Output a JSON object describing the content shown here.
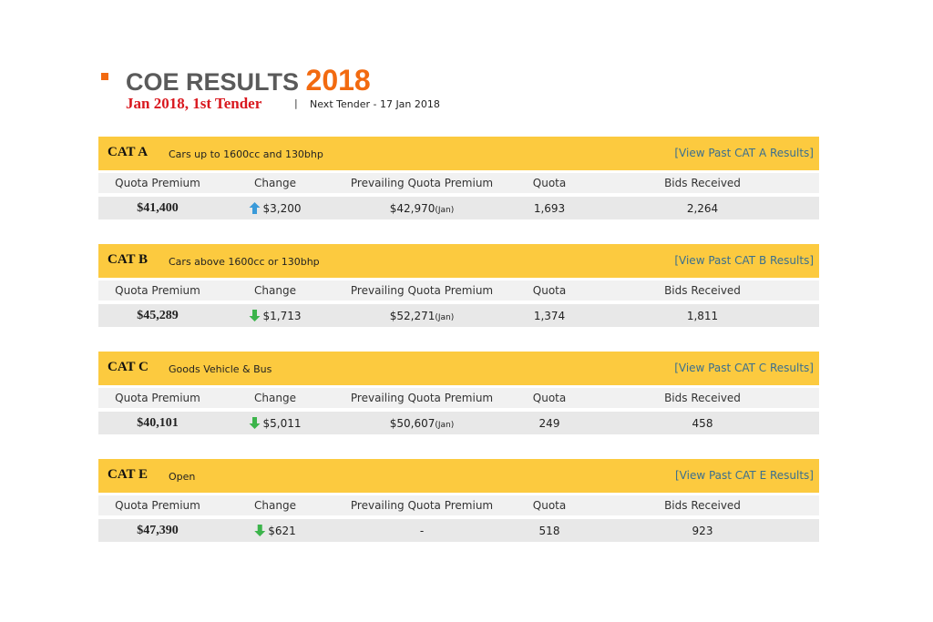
{
  "header": {
    "title": "COE RESULTS",
    "year": "2018",
    "subtitle": "Jan 2018, 1st Tender",
    "separator": "|",
    "next_tender": "Next Tender - 17 Jan 2018"
  },
  "columns": [
    "Quota Premium",
    "Change",
    "Prevailing Quota Premium",
    "Quota",
    "Bids Received"
  ],
  "categories": [
    {
      "code": "CAT A",
      "description": "Cars up to 1600cc and 130bhp",
      "link": "[View Past CAT A Results]",
      "quota_premium": "$41,400",
      "change_direction": "up",
      "change": "$3,200",
      "prevailing": "$42,970",
      "prevailing_note": "(Jan)",
      "quota": "1,693",
      "bids": "2,264"
    },
    {
      "code": "CAT B",
      "description": "Cars above 1600cc or 130bhp",
      "link": "[View Past CAT B Results]",
      "quota_premium": "$45,289",
      "change_direction": "down",
      "change": "$1,713",
      "prevailing": "$52,271",
      "prevailing_note": "(Jan)",
      "quota": "1,374",
      "bids": "1,811"
    },
    {
      "code": "CAT C",
      "description": "Goods Vehicle & Bus",
      "link": "[View Past CAT C Results]",
      "quota_premium": "$40,101",
      "change_direction": "down",
      "change": "$5,011",
      "prevailing": "$50,607",
      "prevailing_note": "(Jan)",
      "quota": "249",
      "bids": "458"
    },
    {
      "code": "CAT E",
      "description": "Open",
      "link": "[View Past CAT E Results]",
      "quota_premium": "$47,390",
      "change_direction": "down",
      "change": "$621",
      "prevailing": "-",
      "quota": "518",
      "bids": "923"
    }
  ]
}
